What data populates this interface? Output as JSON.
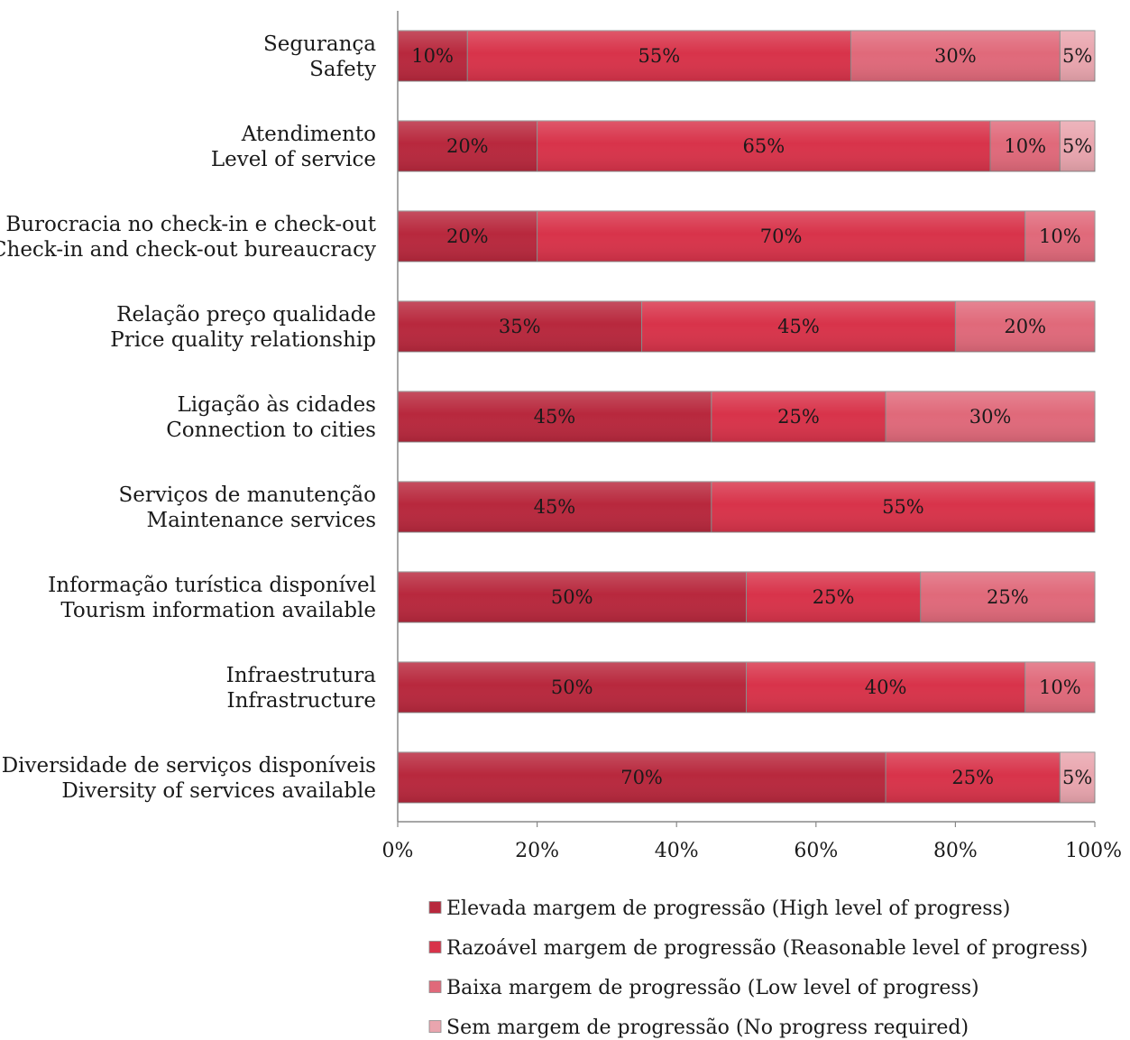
{
  "chart_data": {
    "type": "bar",
    "orientation": "horizontal",
    "stacked": "percent",
    "categories": [
      [
        "Segurança",
        "Safety"
      ],
      [
        "Atendimento",
        "Level of service"
      ],
      [
        "Burocracia no check-in e check-out",
        "Check-in and check-out bureaucracy"
      ],
      [
        "Relação preço qualidade",
        "Price quality relationship"
      ],
      [
        "Ligação às cidades",
        "Connection to cities"
      ],
      [
        "Serviços de manutenção",
        "Maintenance services"
      ],
      [
        "Informação turística disponível",
        "Tourism information available"
      ],
      [
        "Infraestrutura",
        "Infrastructure"
      ],
      [
        "Diversidade de serviços disponíveis",
        "Diversity of services available"
      ]
    ],
    "series": [
      {
        "name": "Elevada margem de progressão (High level of progress)",
        "color": "#b8283d",
        "values": [
          10,
          20,
          20,
          35,
          45,
          45,
          50,
          50,
          70
        ]
      },
      {
        "name": "Razoável margem de progressão (Reasonable level of progress)",
        "color": "#d8334a",
        "values": [
          55,
          65,
          70,
          45,
          25,
          55,
          25,
          40,
          25
        ]
      },
      {
        "name": "Baixa margem de progressão (Low level of progress)",
        "color": "#e0697a",
        "values": [
          30,
          10,
          10,
          20,
          30,
          0,
          25,
          10,
          0
        ]
      },
      {
        "name": "Sem margem de progressão (No progress required)",
        "color": "#e9a5ae",
        "values": [
          5,
          5,
          0,
          0,
          0,
          0,
          0,
          0,
          5
        ]
      }
    ],
    "x_ticks": [
      "0%",
      "20%",
      "40%",
      "60%",
      "80%",
      "100%"
    ],
    "xlim": [
      0,
      100
    ],
    "value_format": "percent",
    "grid": false,
    "legend_position": "bottom"
  }
}
